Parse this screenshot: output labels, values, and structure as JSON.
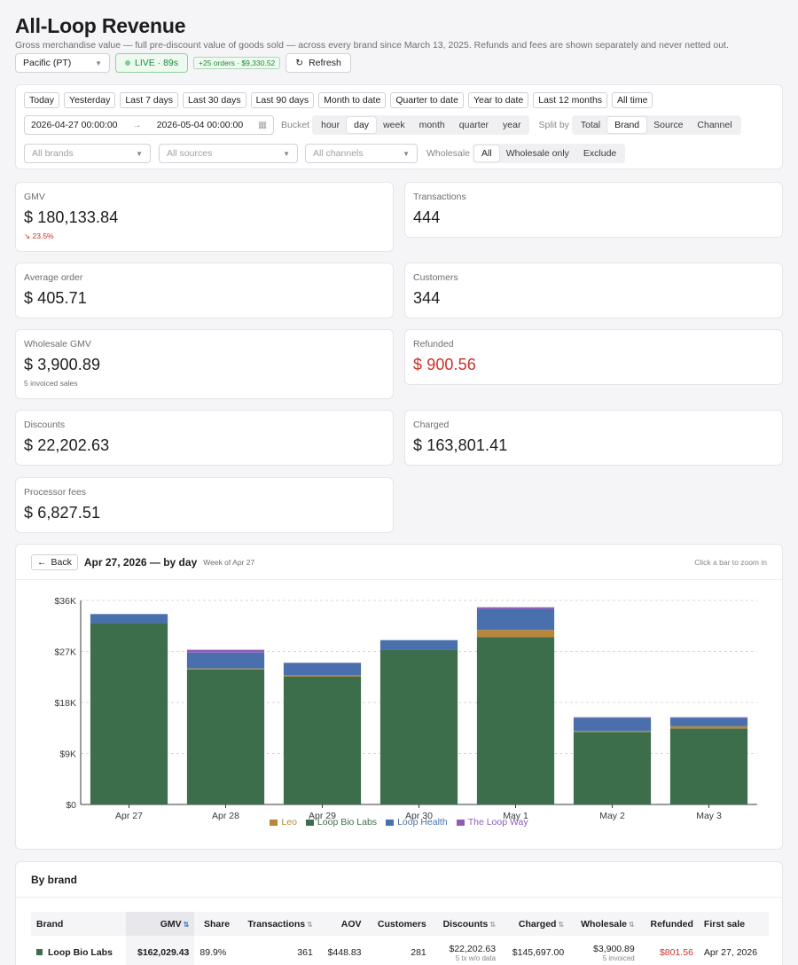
{
  "header": {
    "title": "All-Loop Revenue",
    "subtitle": "Gross merchandise value — full pre-discount value of goods sold — across every brand since March 13, 2025. Refunds and fees are shown separately and never netted out."
  },
  "toolbar": {
    "timezone": "Pacific (PT)",
    "live": "LIVE · 89s",
    "new_orders": "+25 orders · $9,330.52",
    "refresh": "Refresh"
  },
  "filters": {
    "presets": [
      "Today",
      "Yesterday",
      "Last 7 days",
      "Last 30 days",
      "Last 90 days",
      "Month to date",
      "Quarter to date",
      "Year to date",
      "Last 12 months",
      "All time"
    ],
    "date_from": "2026-04-27 00:00:00",
    "date_to": "2026-05-04 00:00:00",
    "bucket_label": "Bucket",
    "buckets": [
      "hour",
      "day",
      "week",
      "month",
      "quarter",
      "year"
    ],
    "bucket_selected": "day",
    "split_label": "Split by",
    "splits": [
      "Total",
      "Brand",
      "Source",
      "Channel"
    ],
    "split_selected": "Brand",
    "brands_placeholder": "All brands",
    "sources_placeholder": "All sources",
    "channels_placeholder": "All channels",
    "wholesale_label": "Wholesale",
    "wholesale_options": [
      "All",
      "Wholesale only",
      "Exclude"
    ],
    "wholesale_selected": "All"
  },
  "metrics": {
    "gmv": {
      "label": "GMV",
      "value": "$ 180,133.84",
      "delta": "23.5%"
    },
    "transactions": {
      "label": "Transactions",
      "value": "444"
    },
    "aov": {
      "label": "Average order",
      "value": "$ 405.71"
    },
    "customers": {
      "label": "Customers",
      "value": "344"
    },
    "wholesale": {
      "label": "Wholesale GMV",
      "value": "$ 3,900.89",
      "sub": "5 invoiced sales"
    },
    "refunded": {
      "label": "Refunded",
      "value": "$ 900.56"
    },
    "discounts": {
      "label": "Discounts",
      "value": "$ 22,202.63"
    },
    "charged": {
      "label": "Charged",
      "value": "$ 163,801.41"
    },
    "fees": {
      "label": "Processor fees",
      "value": "$ 6,827.51"
    }
  },
  "chart_header": {
    "back": "Back",
    "title": "Apr 27, 2026 — by day",
    "week": "Week of Apr 27",
    "hint": "Click a bar to zoom in"
  },
  "colors": {
    "Leo": "#b8863b",
    "Loop Bio Labs": "#3d6e4b",
    "Loop Health": "#4a6fad",
    "The Loop Way": "#8e5cb8"
  },
  "chart_data": {
    "type": "bar",
    "stacked": true,
    "categories": [
      "Apr 27",
      "Apr 28",
      "Apr 29",
      "Apr 30",
      "May 1",
      "May 2",
      "May 3"
    ],
    "series": [
      {
        "name": "Loop Bio Labs",
        "values": [
          32000,
          23800,
          22600,
          27300,
          29500,
          12800,
          13400
        ]
      },
      {
        "name": "Leo",
        "values": [
          0,
          200,
          200,
          0,
          1300,
          200,
          400
        ]
      },
      {
        "name": "Loop Health",
        "values": [
          1600,
          2800,
          2200,
          1700,
          3700,
          2300,
          1500
        ]
      },
      {
        "name": "The Loop Way",
        "values": [
          0,
          500,
          0,
          0,
          300,
          100,
          100
        ]
      }
    ],
    "yticks": [
      "$0",
      "$9K",
      "$18K",
      "$27K",
      "$36K"
    ],
    "ylim": [
      0,
      36000
    ],
    "grid": true,
    "legend": "bottom"
  },
  "brand_table": {
    "title": "By brand",
    "columns": [
      "Brand",
      "GMV",
      "Share",
      "Transactions",
      "AOV",
      "Customers",
      "Discounts",
      "Charged",
      "Wholesale",
      "Refunded",
      "First sale"
    ],
    "rows": [
      {
        "brand": "Loop Bio Labs",
        "gmv": "$162,029.43",
        "share": "89.9%",
        "transactions": "361",
        "aov": "$448.83",
        "customers": "281",
        "discounts": "$22,202.63",
        "discounts_note": "5 tx w/o data",
        "charged": "$145,697.00",
        "wholesale": "$3,900.89",
        "wholesale_note": "5 invoiced",
        "refunded": "$801.56",
        "first_sale": "Apr 27, 2026"
      }
    ]
  }
}
